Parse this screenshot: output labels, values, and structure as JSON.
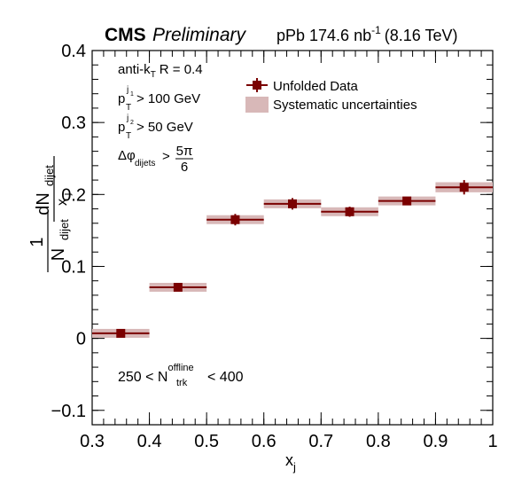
{
  "header": {
    "experiment": "CMS",
    "status": "Preliminary",
    "lumi_prefix": "pPb 174.6 nb",
    "lumi_exp": "-1",
    "energy": "(8.16 TeV)"
  },
  "cuts": {
    "jet_algo": "anti-k",
    "jet_algo_sub": "T",
    "jet_radius": "R = 0.4",
    "pt1_main": "p",
    "pt1_sup": "j",
    "pt1_supsub": "1",
    "pt1_sub": "T",
    "pt1_val": "> 100 GeV",
    "pt2_main": "p",
    "pt2_sup": "j",
    "pt2_supsub": "2",
    "pt2_sub": "T",
    "pt2_val": "> 50 GeV",
    "dphi_main": "Δφ",
    "dphi_sub": "dijets",
    "dphi_gt": ">",
    "dphi_num": "5π",
    "dphi_den": "6"
  },
  "multiplicity": {
    "low": "250 < N",
    "sub": "trk",
    "sup": "offline",
    "high": "< 400"
  },
  "y_axis_label": {
    "one": "1",
    "n_main": "N",
    "n_sub": "dijet",
    "dn_main": "dN",
    "dn_sub": "dijet",
    "x_main": "x",
    "x_sub": "j"
  },
  "x_axis_label": {
    "main": "x",
    "sub": "j"
  },
  "chart_data": {
    "type": "scatter",
    "xlim": [
      0.3,
      1.0
    ],
    "ylim": [
      -0.12,
      0.4
    ],
    "x_ticks": [
      "0.3",
      "0.4",
      "0.5",
      "0.6",
      "0.7",
      "0.8",
      "0.9",
      "1"
    ],
    "y_ticks": [
      "−0.1",
      "0",
      "0.1",
      "0.2",
      "0.3",
      "0.4"
    ],
    "y_tick_values": [
      -0.1,
      0,
      0.1,
      0.2,
      0.3,
      0.4
    ],
    "x_tick_values": [
      0.3,
      0.4,
      0.5,
      0.6,
      0.7,
      0.8,
      0.9,
      1.0
    ],
    "legend": {
      "position": "top-right",
      "entries": [
        "Unfolded Data",
        "Systematic uncertainties"
      ]
    },
    "grid": false,
    "colors": {
      "marker": "#7a0000",
      "systematic": "#d8b8b8"
    },
    "series": [
      {
        "name": "Unfolded Data",
        "points": [
          {
            "x": 0.35,
            "xlow": 0.3,
            "xhigh": 0.4,
            "y": 0.007,
            "stat": 0.002,
            "sys": 0.001
          },
          {
            "x": 0.45,
            "xlow": 0.4,
            "xhigh": 0.5,
            "y": 0.071,
            "stat": 0.005,
            "sys": 0.004
          },
          {
            "x": 0.55,
            "xlow": 0.5,
            "xhigh": 0.6,
            "y": 0.165,
            "stat": 0.008,
            "sys": 0.005
          },
          {
            "x": 0.65,
            "xlow": 0.6,
            "xhigh": 0.7,
            "y": 0.187,
            "stat": 0.008,
            "sys": 0.005
          },
          {
            "x": 0.75,
            "xlow": 0.7,
            "xhigh": 0.8,
            "y": 0.176,
            "stat": 0.007,
            "sys": 0.005
          },
          {
            "x": 0.85,
            "xlow": 0.8,
            "xhigh": 0.9,
            "y": 0.191,
            "stat": 0.005,
            "sys": 0.004
          },
          {
            "x": 0.95,
            "xlow": 0.9,
            "xhigh": 1.0,
            "y": 0.21,
            "stat": 0.01,
            "sys": 0.007
          }
        ]
      }
    ]
  }
}
